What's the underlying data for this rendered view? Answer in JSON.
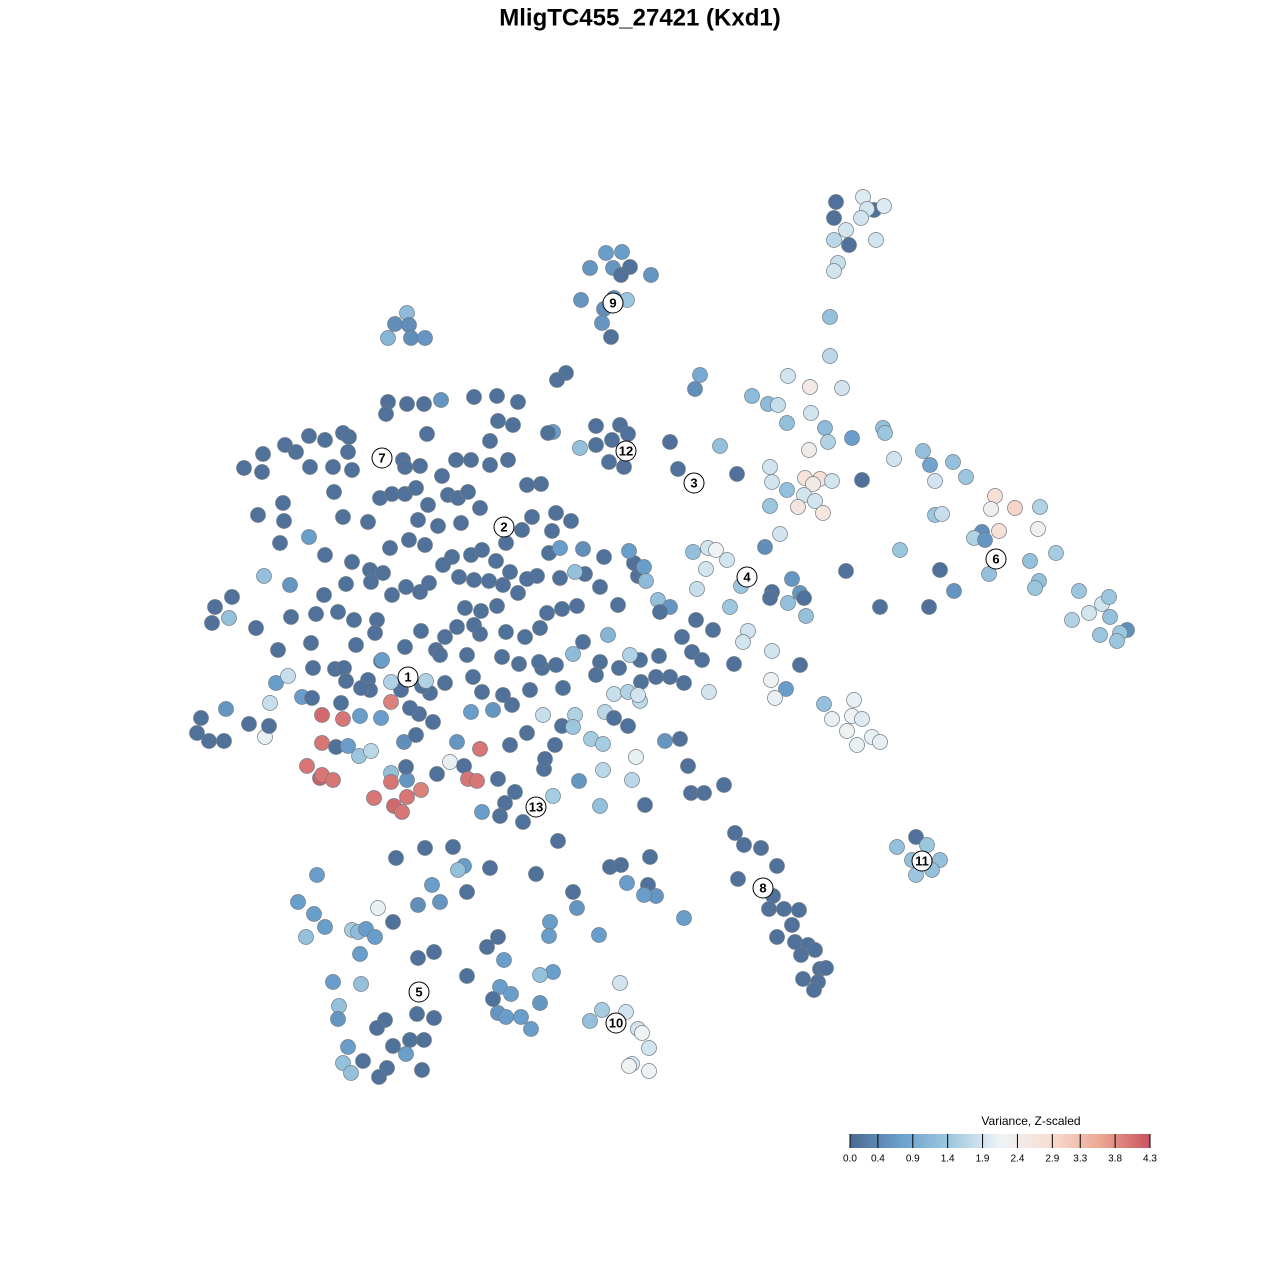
{
  "chart_data": {
    "type": "scatter",
    "title": "MligTC455_27421 (Kxd1)",
    "x": [
      863,
      836,
      874,
      884,
      867,
      834,
      861,
      846,
      834,
      849,
      876,
      838,
      834,
      830,
      830,
      606,
      622,
      590,
      613,
      630,
      621,
      651,
      581,
      604,
      627,
      614,
      602,
      611,
      407,
      395,
      409,
      388,
      411,
      425,
      566,
      557,
      695,
      700,
      388,
      407,
      424,
      441,
      386,
      474,
      497,
      518,
      498,
      513,
      553,
      548,
      596,
      620,
      628,
      612,
      580,
      596,
      609,
      624,
      670,
      678,
      737,
      752,
      768,
      778,
      788,
      810,
      842,
      811,
      787,
      825,
      828,
      852,
      809,
      883,
      885,
      894,
      923,
      930,
      953,
      935,
      966,
      862,
      770,
      772,
      805,
      820,
      813,
      832,
      787,
      804,
      815,
      770,
      798,
      823,
      780,
      995,
      1015,
      991,
      1040,
      1038,
      982,
      999,
      974,
      935,
      942,
      985,
      900,
      1030,
      1056,
      940,
      989,
      1039,
      1035,
      954,
      1079,
      1102,
      1109,
      1110,
      1089,
      1072,
      1127,
      1120,
      1117,
      1100,
      929,
      880,
      846,
      720,
      693,
      708,
      716,
      706,
      697,
      727,
      765,
      741,
      772,
      792,
      800,
      804,
      788,
      806,
      770,
      730,
      748,
      743,
      772,
      734,
      800,
      771,
      786,
      775,
      709,
      824,
      854,
      832,
      852,
      862,
      847,
      872,
      880,
      857,
      244,
      263,
      262,
      285,
      296,
      309,
      325,
      343,
      349,
      348,
      352,
      333,
      310,
      283,
      258,
      284,
      280,
      309,
      325,
      343,
      334,
      368,
      380,
      392,
      405,
      403,
      405,
      420,
      427,
      416,
      428,
      442,
      448,
      456,
      471,
      490,
      508,
      490,
      458,
      468,
      480,
      461,
      438,
      418,
      409,
      390,
      425,
      452,
      471,
      482,
      496,
      506,
      522,
      532,
      541,
      527,
      556,
      571,
      552,
      549,
      560,
      583,
      604,
      585,
      575,
      560,
      537,
      527,
      510,
      503,
      489,
      474,
      459,
      443,
      429,
      420,
      406,
      392,
      370,
      383,
      371,
      346,
      352,
      324,
      316,
      290,
      264,
      232,
      215,
      212,
      229,
      256,
      291,
      278,
      311,
      338,
      354,
      377,
      375,
      356,
      335,
      344,
      313,
      346,
      368,
      381,
      382,
      405,
      421,
      436,
      440,
      445,
      457,
      465,
      474,
      481,
      497,
      518,
      547,
      562,
      577,
      600,
      618,
      638,
      634,
      644,
      629,
      646,
      658,
      670,
      660,
      682,
      692,
      696,
      713,
      702,
      659,
      640,
      630,
      619,
      608,
      600,
      596,
      563,
      542,
      519,
      502,
      506,
      525,
      540,
      539,
      556,
      573,
      583,
      467,
      480,
      445,
      430,
      473,
      482,
      503,
      530,
      512,
      493,
      471,
      433,
      419,
      410,
      401,
      422,
      426,
      391,
      370,
      361,
      341,
      360,
      381,
      391,
      343,
      322,
      302,
      312,
      276,
      288,
      226,
      201,
      197,
      209,
      224,
      249,
      265,
      269,
      270,
      322,
      336,
      348,
      359,
      371,
      307,
      320,
      322,
      333,
      391,
      391,
      407,
      406,
      421,
      374,
      394,
      402,
      407,
      404,
      416,
      457,
      450,
      437,
      464,
      468,
      477,
      480,
      498,
      505,
      500,
      482,
      515,
      523,
      553,
      544,
      545,
      555,
      510,
      527,
      543,
      562,
      575,
      573,
      591,
      603,
      605,
      614,
      628,
      614,
      628,
      640,
      636,
      632,
      603,
      600,
      579,
      645,
      665,
      680,
      688,
      691,
      704,
      724,
      670,
      684,
      656,
      641,
      638,
      735,
      744,
      761,
      777,
      738,
      773,
      769,
      784,
      799,
      792,
      777,
      795,
      808,
      801,
      815,
      820,
      826,
      803,
      818,
      814,
      916,
      897,
      927,
      912,
      940,
      932,
      916,
      558,
      425,
      453,
      396,
      464,
      458,
      490,
      536,
      610,
      650,
      621,
      317,
      432,
      467,
      440,
      418,
      573,
      627,
      648,
      656,
      644,
      298,
      378,
      314,
      325,
      306,
      352,
      358,
      366,
      375,
      393,
      577,
      550,
      549,
      599,
      684,
      498,
      487,
      434,
      418,
      360,
      467,
      504,
      553,
      540,
      333,
      361,
      500,
      493,
      511,
      540,
      620,
      339,
      338,
      417,
      434,
      498,
      506,
      521,
      531,
      602,
      626,
      590,
      638,
      642,
      385,
      377,
      410,
      424,
      348,
      393,
      406,
      363,
      343,
      387,
      422,
      351,
      379,
      649,
      632,
      629,
      649
    ],
    "y": [
      197,
      202,
      210,
      206,
      209,
      218,
      218,
      230,
      240,
      245,
      240,
      263,
      271,
      317,
      356,
      253,
      252,
      268,
      268,
      267,
      275,
      275,
      300,
      309,
      300,
      298,
      323,
      337,
      313,
      324,
      325,
      338,
      338,
      338,
      373,
      380,
      389,
      375,
      402,
      404,
      404,
      400,
      414,
      397,
      396,
      402,
      421,
      425,
      432,
      433,
      426,
      425,
      434,
      440,
      448,
      445,
      462,
      467,
      442,
      469,
      474,
      396,
      404,
      405,
      376,
      387,
      388,
      413,
      423,
      428,
      442,
      438,
      450,
      428,
      433,
      459,
      451,
      465,
      462,
      481,
      477,
      480,
      467,
      482,
      478,
      479,
      484,
      481,
      490,
      495,
      501,
      506,
      507,
      513,
      534,
      496,
      508,
      509,
      507,
      529,
      532,
      531,
      538,
      515,
      514,
      540,
      550,
      561,
      553,
      570,
      574,
      581,
      588,
      591,
      591,
      604,
      597,
      617,
      613,
      620,
      630,
      633,
      641,
      635,
      607,
      607,
      571,
      446,
      552,
      548,
      550,
      569,
      589,
      560,
      547,
      586,
      592,
      579,
      593,
      598,
      603,
      616,
      598,
      607,
      631,
      642,
      651,
      664,
      665,
      680,
      689,
      698,
      692,
      704,
      700,
      719,
      716,
      719,
      731,
      737,
      742,
      745,
      468,
      454,
      472,
      445,
      452,
      436,
      440,
      433,
      437,
      452,
      470,
      467,
      467,
      503,
      515,
      521,
      543,
      537,
      555,
      517,
      492,
      522,
      498,
      494,
      494,
      460,
      467,
      466,
      434,
      488,
      505,
      476,
      495,
      460,
      460,
      465,
      460,
      441,
      498,
      492,
      508,
      523,
      526,
      520,
      540,
      548,
      545,
      557,
      555,
      550,
      561,
      543,
      530,
      517,
      484,
      485,
      513,
      521,
      531,
      553,
      548,
      549,
      557,
      574,
      572,
      578,
      576,
      579,
      572,
      585,
      581,
      580,
      577,
      565,
      583,
      592,
      587,
      595,
      570,
      573,
      582,
      584,
      562,
      595,
      614,
      585,
      576,
      597,
      607,
      623,
      618,
      628,
      617,
      650,
      643,
      612,
      620,
      620,
      633,
      645,
      669,
      668,
      668,
      681,
      680,
      661,
      660,
      647,
      631,
      650,
      655,
      637,
      627,
      608,
      625,
      611,
      606,
      593,
      613,
      609,
      606,
      587,
      605,
      576,
      563,
      567,
      551,
      581,
      600,
      607,
      612,
      637,
      652,
      620,
      630,
      660,
      656,
      660,
      655,
      668,
      635,
      662,
      675,
      688,
      668,
      664,
      657,
      632,
      637,
      628,
      662,
      665,
      654,
      642,
      655,
      634,
      683,
      693,
      677,
      692,
      695,
      690,
      705,
      710,
      712,
      722,
      714,
      708,
      690,
      686,
      681,
      682,
      690,
      688,
      703,
      716,
      718,
      702,
      719,
      715,
      697,
      698,
      683,
      676,
      709,
      718,
      733,
      741,
      741,
      724,
      737,
      726,
      703,
      743,
      747,
      746,
      756,
      751,
      766,
      778,
      775,
      780,
      773,
      782,
      780,
      767,
      790,
      798,
      806,
      812,
      797,
      742,
      735,
      742,
      762,
      774,
      766,
      779,
      781,
      749,
      779,
      803,
      816,
      812,
      792,
      822,
      796,
      769,
      759,
      745,
      745,
      733,
      715,
      726,
      715,
      727,
      739,
      744,
      712,
      718,
      726,
      694,
      692,
      701,
      757,
      780,
      770,
      806,
      781,
      805,
      741,
      739,
      766,
      793,
      793,
      785,
      677,
      683,
      677,
      682,
      695,
      833,
      845,
      848,
      866,
      879,
      896,
      909,
      909,
      910,
      925,
      937,
      942,
      945,
      955,
      950,
      969,
      968,
      979,
      982,
      990,
      837,
      847,
      845,
      860,
      860,
      870,
      875,
      841,
      848,
      847,
      858,
      866,
      870,
      868,
      874,
      867,
      857,
      865,
      875,
      885,
      892,
      902,
      905,
      892,
      883,
      885,
      896,
      895,
      902,
      908,
      914,
      927,
      937,
      930,
      932,
      929,
      937,
      922,
      908,
      922,
      936,
      935,
      918,
      937,
      947,
      952,
      958,
      954,
      976,
      960,
      972,
      975,
      982,
      984,
      987,
      999,
      994,
      1003,
      983,
      1006,
      1019,
      1014,
      1018,
      1013,
      1017,
      1017,
      1029,
      1010,
      1012,
      1021,
      1029,
      1033,
      1020,
      1028,
      1040,
      1040,
      1047,
      1046,
      1054,
      1061,
      1063,
      1068,
      1070,
      1073,
      1077,
      1048,
      1064,
      1066,
      1071
    ],
    "values": [
      2.0,
      0.1,
      0.1,
      2.0,
      1.9,
      0.1,
      1.9,
      1.9,
      1.7,
      0.1,
      1.9,
      1.8,
      1.9,
      1.3,
      1.7,
      0.7,
      0.7,
      0.6,
      0.6,
      0.1,
      0.1,
      0.6,
      0.6,
      0.5,
      1.4,
      0.5,
      0.6,
      0.1,
      1.2,
      0.5,
      0.5,
      1.1,
      0.5,
      0.6,
      0.1,
      0.1,
      0.5,
      0.9,
      0.1,
      0.1,
      0.1,
      0.6,
      0.1,
      0.1,
      0.1,
      0.1,
      0.1,
      0.1,
      0.7,
      0.1,
      0.1,
      0.1,
      0.1,
      0.1,
      1.3,
      0.1,
      0.1,
      0.1,
      0.1,
      0.1,
      0.1,
      1.2,
      1.2,
      1.8,
      1.9,
      2.5,
      1.9,
      1.9,
      1.3,
      1.2,
      1.6,
      0.7,
      2.4,
      1.3,
      1.4,
      1.9,
      1.3,
      0.8,
      1.3,
      1.9,
      1.4,
      0.1,
      1.9,
      1.9,
      2.7,
      2.8,
      2.5,
      1.9,
      1.3,
      1.9,
      1.9,
      1.4,
      2.6,
      2.6,
      1.9,
      2.8,
      3.0,
      2.3,
      1.6,
      2.3,
      0.5,
      2.8,
      1.6,
      1.4,
      1.8,
      0.6,
      1.4,
      1.3,
      1.5,
      0.1,
      1.3,
      1.3,
      1.4,
      0.6,
      1.4,
      1.9,
      1.4,
      1.3,
      1.9,
      1.6,
      0.5,
      1.4,
      1.4,
      1.4,
      0.1,
      0.1,
      0.1,
      1.3,
      1.3,
      1.9,
      2.2,
      1.9,
      1.8,
      1.9,
      0.5,
      1.4,
      0.1,
      0.6,
      0.6,
      0.1,
      1.3,
      1.3,
      0.1,
      1.4,
      1.9,
      1.9,
      1.9,
      0.1,
      0.1,
      2.2,
      0.7,
      2.1,
      1.9,
      1.3,
      2.1,
      2.1,
      2.2,
      2.0,
      2.2,
      2.1,
      2.1,
      2.1,
      0.1,
      0.1,
      0.1,
      0.1,
      0.1,
      0.1,
      0.1,
      0.1,
      0.1,
      0.1,
      0.1,
      0.1,
      0.1,
      0.1,
      0.1,
      0.1,
      0.1,
      0.7,
      0.1,
      0.1,
      0.1,
      0.1,
      0.1,
      0.1,
      0.1,
      0.1,
      0.1,
      0.1,
      0.1,
      0.1,
      0.1,
      0.1,
      0.1,
      0.1,
      0.1,
      0.1,
      0.1,
      0.1,
      0.1,
      0.1,
      0.1,
      0.1,
      0.1,
      0.1,
      0.1,
      0.1,
      0.1,
      0.1,
      0.1,
      0.1,
      0.1,
      0.1,
      0.1,
      0.1,
      0.1,
      0.1,
      0.1,
      0.1,
      0.1,
      0.1,
      0.7,
      0.5,
      0.1,
      0.1,
      1.3,
      0.1,
      0.1,
      0.1,
      0.1,
      0.1,
      0.1,
      0.1,
      0.1,
      0.1,
      0.1,
      0.1,
      0.1,
      0.1,
      0.1,
      0.1,
      0.1,
      0.1,
      0.1,
      0.1,
      0.1,
      0.6,
      1.3,
      0.1,
      0.1,
      0.1,
      1.3,
      0.1,
      0.1,
      0.1,
      0.1,
      0.1,
      0.1,
      0.1,
      0.1,
      0.1,
      0.1,
      0.1,
      0.1,
      0.1,
      0.1,
      0.1,
      0.7,
      0.1,
      0.1,
      0.1,
      0.1,
      0.1,
      0.1,
      0.1,
      0.1,
      0.1,
      0.1,
      0.1,
      0.1,
      0.1,
      0.1,
      0.1,
      0.1,
      0.1,
      0.1,
      0.7,
      0.7,
      1.2,
      1.3,
      0.6,
      0.1,
      0.1,
      0.1,
      0.1,
      0.1,
      0.1,
      0.1,
      0.1,
      1.6,
      0.1,
      1.1,
      0.1,
      0.1,
      0.1,
      0.1,
      0.1,
      0.1,
      0.1,
      0.1,
      0.1,
      0.1,
      0.1,
      1.2,
      0.1,
      0.1,
      0.1,
      0.1,
      0.1,
      0.1,
      0.1,
      0.1,
      0.1,
      0.1,
      0.6,
      0.7,
      0.1,
      0.1,
      0.1,
      0.1,
      0.1,
      1.6,
      1.6,
      0.1,
      0.1,
      0.1,
      0.7,
      0.7,
      3.9,
      4.0,
      4.1,
      0.7,
      0.1,
      0.7,
      1.8,
      0.6,
      0.1,
      0.1,
      0.1,
      0.1,
      0.1,
      2.1,
      0.1,
      1.8,
      4.0,
      0.1,
      0.7,
      1.4,
      1.7,
      4.0,
      4.2,
      4.0,
      4.0,
      1.3,
      4.0,
      0.6,
      0.1,
      3.9,
      4.0,
      4.1,
      4.0,
      4.0,
      0.5,
      0.1,
      0.6,
      2.1,
      0.1,
      0.1,
      4.0,
      4.0,
      4.0,
      0.1,
      0.1,
      0.1,
      0.7,
      0.1,
      0.1,
      1.5,
      0.1,
      0.1,
      0.1,
      0.1,
      0.1,
      1.8,
      0.1,
      1.6,
      1.4,
      1.5,
      1.5,
      1.7,
      0.1,
      0.1,
      1.8,
      1.6,
      1.7,
      2.1,
      1.7,
      1.7,
      1.3,
      0.6,
      0.1,
      0.6,
      0.1,
      0.1,
      0.1,
      0.1,
      0.1,
      0.1,
      0.1,
      0.1,
      0.1,
      1.9,
      0.1,
      0.1,
      0.1,
      0.1,
      0.1,
      0.1,
      0.1,
      0.1,
      0.1,
      0.1,
      0.1,
      0.1,
      0.1,
      0.1,
      0.1,
      0.1,
      0.1,
      0.1,
      0.1,
      0.1,
      0.1,
      1.3,
      1.4,
      1.3,
      1.3,
      1.3,
      1.4,
      0.1,
      0.1,
      0.1,
      0.1,
      0.7,
      1.3,
      0.1,
      0.1,
      0.1,
      0.1,
      0.1,
      0.7,
      0.7,
      0.1,
      0.6,
      0.5,
      0.1,
      0.7,
      0.1,
      0.6,
      0.7,
      0.7,
      2.1,
      0.7,
      0.7,
      1.3,
      1.5,
      1.2,
      0.7,
      0.7,
      0.1,
      0.6,
      0.7,
      0.7,
      0.7,
      0.7,
      0.1,
      0.1,
      0.1,
      0.1,
      0.7,
      0.1,
      0.7,
      0.7,
      1.3,
      0.7,
      1.3,
      0.7,
      0.1,
      0.7,
      0.6,
      1.9,
      1.3,
      0.6,
      0.1,
      0.1,
      0.6,
      0.7,
      0.7,
      0.7,
      1.5,
      1.9,
      1.3,
      1.9,
      2.2,
      0.1,
      0.1,
      0.1,
      0.1,
      0.7,
      0.1,
      0.7,
      0.1,
      1.3,
      0.1,
      0.1,
      1.3,
      0.1,
      1.9,
      2.0,
      2.2,
      2.2
    ],
    "xlim": [
      180,
      1150
    ],
    "ylim": [
      1100,
      180
    ],
    "annotations": [
      {
        "text": "1",
        "x": 408,
        "y": 677
      },
      {
        "text": "2",
        "x": 504,
        "y": 527
      },
      {
        "text": "3",
        "x": 694,
        "y": 483
      },
      {
        "text": "4",
        "x": 747,
        "y": 577
      },
      {
        "text": "5",
        "x": 419,
        "y": 992
      },
      {
        "text": "6",
        "x": 996,
        "y": 559
      },
      {
        "text": "7",
        "x": 382,
        "y": 458
      },
      {
        "text": "8",
        "x": 763,
        "y": 888
      },
      {
        "text": "9",
        "x": 613,
        "y": 303
      },
      {
        "text": "10",
        "x": 616,
        "y": 1023
      },
      {
        "text": "11",
        "x": 922,
        "y": 861
      },
      {
        "text": "12",
        "x": 626,
        "y": 451
      },
      {
        "text": "13",
        "x": 536,
        "y": 807
      }
    ],
    "colorbar": {
      "title": "Variance, Z-scaled",
      "lim": [
        0,
        4.3
      ],
      "colors": [
        "#4c6a91",
        "#6a9fcc",
        "#9ec8df",
        "#eef3f6",
        "#f8ded2",
        "#eca892",
        "#c8525f"
      ],
      "ticks": [
        {
          "value": 0,
          "label": "0.0"
        },
        {
          "value": 0.4,
          "label": "0.4"
        },
        {
          "value": 0.9,
          "label": "0.9"
        },
        {
          "value": 1.4,
          "label": "1.4"
        },
        {
          "value": 1.9,
          "label": "1.9"
        },
        {
          "value": 2.4,
          "label": "2.4"
        },
        {
          "value": 2.9,
          "label": "2.9"
        },
        {
          "value": 3.3,
          "label": "3.3"
        },
        {
          "value": 3.8,
          "label": "3.8"
        },
        {
          "value": 4.3,
          "label": "4.3"
        }
      ]
    }
  }
}
